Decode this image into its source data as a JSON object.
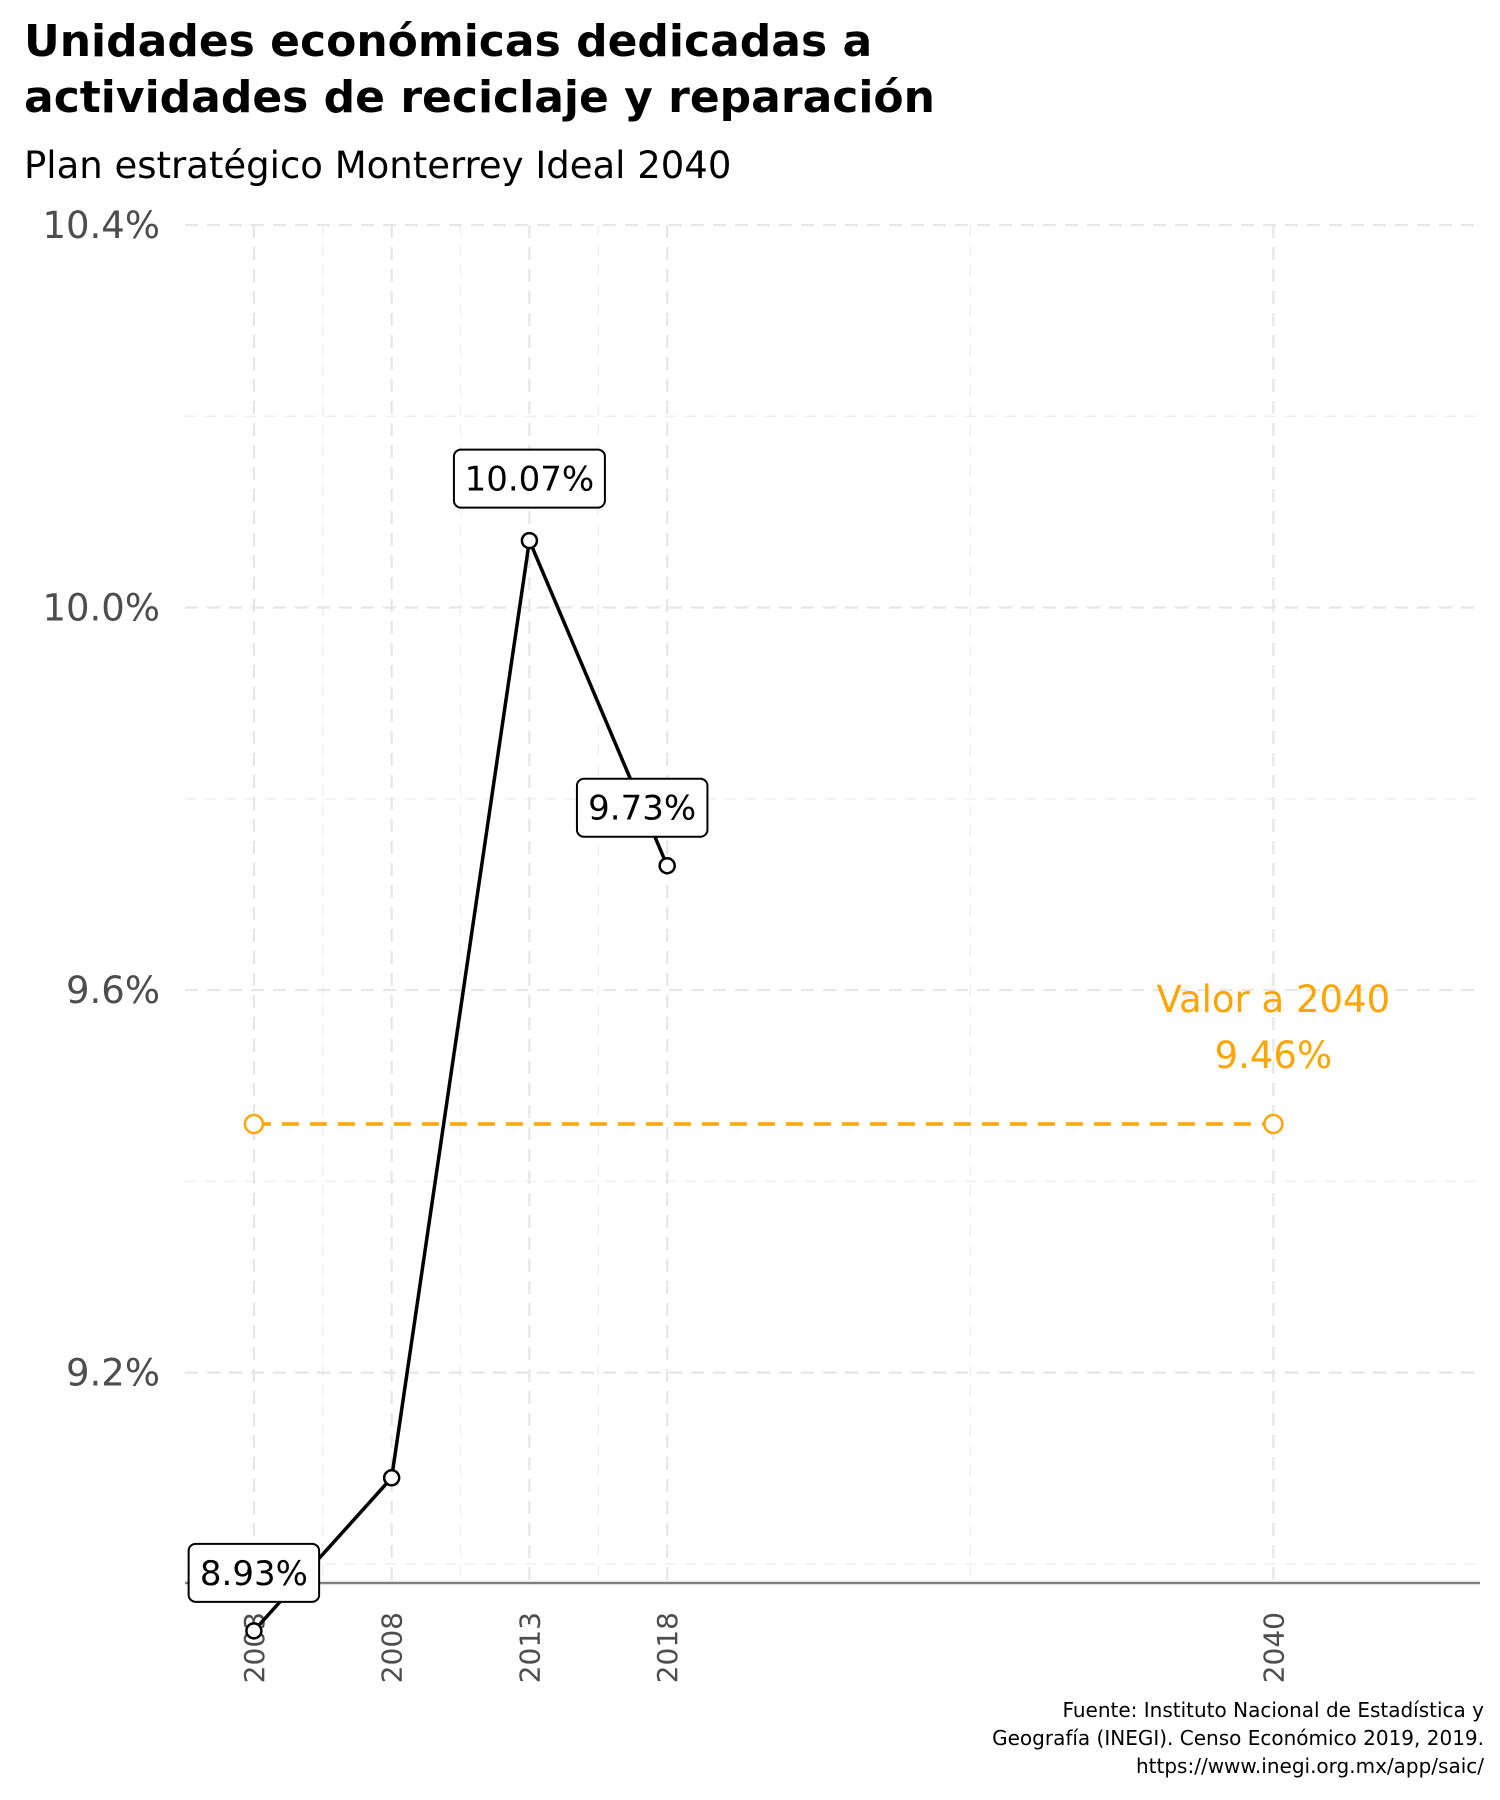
{
  "title": "Unidades económicas dedicadas a actividades de reciclaje y reparación",
  "subtitle": "Plan estratégico Monterrey Ideal 2040",
  "caption": [
    "Fuente: Instituto Nacional de Estadística y",
    "Geografía (INEGI). Censo Económico 2019, 2019.",
    "https://www.inegi.org.mx/app/saic/"
  ],
  "chart_data": {
    "type": "line",
    "title": "Unidades económicas dedicadas a actividades de reciclaje y reparación",
    "subtitle": "Plan estratégico Monterrey Ideal 2040",
    "xlabel": "",
    "ylabel": "",
    "x_ticks": [
      "2003",
      "2008",
      "2013",
      "2018",
      "2040"
    ],
    "y_ticks": [
      "9.2%",
      "9.6%",
      "10.0%",
      "10.4%"
    ],
    "y_tick_values": [
      9.2,
      9.6,
      10.0,
      10.4
    ],
    "xlim": [
      2000.5,
      2047.5
    ],
    "ylim": [
      8.98,
      10.4
    ],
    "grid": true,
    "series": [
      {
        "x": [
          2003,
          2008,
          2013,
          2018
        ],
        "y": [
          8.93,
          9.09,
          10.07,
          9.73
        ],
        "color": "#000000"
      }
    ],
    "point_labels": [
      {
        "x": 2003,
        "y": 8.93,
        "text": "8.93%"
      },
      {
        "x": 2013,
        "y": 10.07,
        "text": "10.07%"
      },
      {
        "x": 2018,
        "y": 9.73,
        "text": "9.73%"
      }
    ],
    "target": {
      "x": [
        2003,
        2040
      ],
      "y": 9.46,
      "color": "#FFA500",
      "label": "Valor a 2040",
      "value_label": "9.46%"
    }
  }
}
